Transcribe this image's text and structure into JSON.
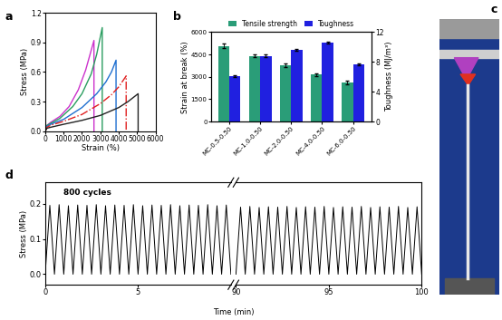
{
  "chart_data": [
    {
      "type": "line",
      "panel": "a",
      "xlabel": "Strain (%)",
      "ylabel": "Stress (MPa)",
      "xlim": [
        0,
        6000
      ],
      "xticks": [
        0,
        1000,
        2000,
        3000,
        4000,
        5000,
        6000
      ],
      "ylim": [
        0.0,
        1.2
      ],
      "yticks": [
        0.0,
        0.3,
        0.6,
        0.9,
        1.2
      ],
      "series": [
        {
          "color": "#cc33cc",
          "line_style": "solid",
          "x": [
            0,
            100,
            300,
            800,
            1300,
            1800,
            2200,
            2500,
            2650,
            2650
          ],
          "values": [
            0,
            0.06,
            0.09,
            0.15,
            0.25,
            0.42,
            0.62,
            0.82,
            0.92,
            0
          ]
        },
        {
          "color": "#2a9d60",
          "line_style": "solid",
          "x": [
            0,
            100,
            300,
            800,
            1500,
            2000,
            2500,
            2800,
            3100,
            3100
          ],
          "values": [
            0,
            0.06,
            0.08,
            0.13,
            0.25,
            0.38,
            0.58,
            0.78,
            1.05,
            0
          ]
        },
        {
          "color": "#1f6fd0",
          "line_style": "solid",
          "x": [
            0,
            100,
            300,
            1000,
            2000,
            2800,
            3300,
            3600,
            3850,
            3850
          ],
          "values": [
            0,
            0.05,
            0.07,
            0.12,
            0.24,
            0.38,
            0.5,
            0.6,
            0.72,
            0
          ]
        },
        {
          "color": "#e02020",
          "line_style": "dashdot",
          "x": [
            0,
            100,
            300,
            1000,
            2000,
            3000,
            3600,
            4000,
            4400,
            4400
          ],
          "values": [
            0,
            0.04,
            0.06,
            0.1,
            0.17,
            0.28,
            0.37,
            0.45,
            0.56,
            0
          ]
        },
        {
          "color": "#222222",
          "line_style": "solid",
          "x": [
            0,
            100,
            300,
            1000,
            2000,
            3000,
            4000,
            4500,
            5050,
            5050
          ],
          "values": [
            0,
            0.03,
            0.04,
            0.07,
            0.11,
            0.16,
            0.24,
            0.3,
            0.38,
            0
          ]
        }
      ]
    },
    {
      "type": "bar",
      "panel": "b",
      "ylabel": "Strain at break (%)",
      "y2label": "Toughness (MJ/m³)",
      "categories": [
        "MC-0.5-0.50",
        "MC-1.0-0.50",
        "MC-2.0-0.50",
        "MC-4.0-0.50",
        "MC-6.0-0.50"
      ],
      "ylim": [
        0,
        6000
      ],
      "yticks": [
        0,
        1500,
        3000,
        4500,
        6000
      ],
      "y2lim": [
        0,
        12
      ],
      "y2ticks": [
        0,
        4,
        8,
        12
      ],
      "legend": "upper center",
      "series": [
        {
          "name": "Tensile strength",
          "color": "#2a9d78",
          "values": [
            5050,
            4400,
            3780,
            3150,
            2620
          ],
          "errors": [
            150,
            100,
            120,
            100,
            100
          ]
        },
        {
          "name": "Toughness",
          "color": "#2020e0",
          "axis": "y2",
          "values": [
            6.1,
            8.8,
            9.6,
            10.6,
            7.7
          ],
          "errors": [
            0.1,
            0.15,
            0.1,
            0.1,
            0.1
          ]
        }
      ]
    },
    {
      "type": "image",
      "panel": "c"
    },
    {
      "type": "broken_line",
      "panel": "d",
      "xlabel": "Time (min)",
      "ylabel": "Stress (MPa)",
      "annotation": "800 cycles",
      "ylim": [
        -0.03,
        0.26
      ],
      "yticks": [
        0.0,
        0.1,
        0.2
      ],
      "color": "#000000",
      "segments": [
        {
          "xlim": [
            0,
            10
          ],
          "xticks": [
            0,
            5
          ],
          "x": [
            0,
            0.25,
            0.5,
            0.75,
            1,
            1.25,
            1.5,
            1.75,
            2,
            2.25,
            2.5,
            2.75,
            3,
            3.25,
            3.5,
            3.75,
            4,
            4.25,
            4.5,
            4.75,
            5,
            5.25,
            5.5,
            5.75,
            6,
            6.25,
            6.5,
            6.75,
            7,
            7.25,
            7.5,
            7.75,
            8,
            8.25,
            8.5,
            8.75,
            9,
            9.25,
            9.5,
            9.75,
            10
          ],
          "values": [
            0,
            0.195,
            0,
            0.197,
            0,
            0.194,
            0,
            0.196,
            0,
            0.195,
            0,
            0.197,
            0,
            0.194,
            0,
            0.196,
            0,
            0.195,
            0,
            0.197,
            0,
            0.194,
            0,
            0.196,
            0,
            0.195,
            0,
            0.197,
            0,
            0.194,
            0,
            0.196,
            0,
            0.195,
            0,
            0.197,
            0,
            0.194,
            0,
            0.196,
            0
          ]
        },
        {
          "xlim": [
            90,
            100
          ],
          "xticks": [
            90,
            95,
            100
          ],
          "x": [
            90,
            90.25,
            90.5,
            90.75,
            91,
            91.25,
            91.5,
            91.75,
            92,
            92.25,
            92.5,
            92.75,
            93,
            93.25,
            93.5,
            93.75,
            94,
            94.25,
            94.5,
            94.75,
            95,
            95.25,
            95.5,
            95.75,
            96,
            96.25,
            96.5,
            96.75,
            97,
            97.25,
            97.5,
            97.75,
            98,
            98.25,
            98.5,
            98.75,
            99,
            99.25,
            99.5,
            99.75,
            100
          ],
          "values": [
            0,
            0.19,
            0,
            0.192,
            0,
            0.189,
            0,
            0.191,
            0,
            0.19,
            0,
            0.192,
            0,
            0.189,
            0,
            0.191,
            0,
            0.19,
            0,
            0.192,
            0,
            0.189,
            0,
            0.191,
            0,
            0.19,
            0,
            0.192,
            0,
            0.189,
            0,
            0.191,
            0,
            0.19,
            0,
            0.192,
            0,
            0.189,
            0,
            0.191,
            0
          ]
        }
      ]
    }
  ]
}
